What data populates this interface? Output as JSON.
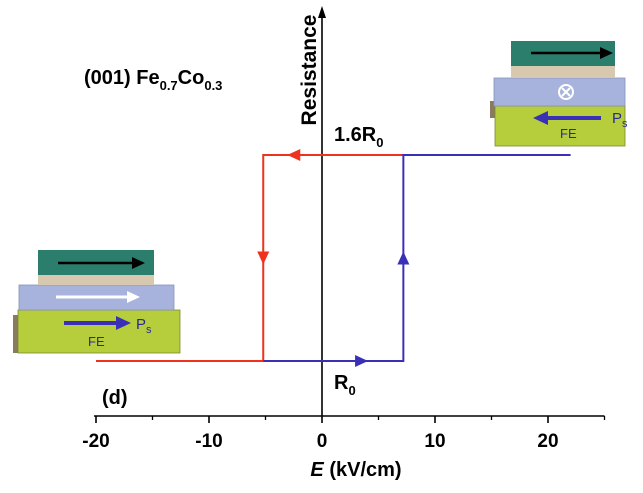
{
  "chart_data": {
    "type": "line",
    "title": "",
    "sample_label": {
      "prefix": "(001) Fe",
      "sub1": "0.7",
      "mid": "Co",
      "sub2": "0.3"
    },
    "panel_label": "(d)",
    "xlabel_italic": "E",
    "xlabel_units": " (kV/cm)",
    "ylabel": "Resistance",
    "xlim": [
      -20,
      25
    ],
    "ylim": [
      0.9,
      1.8
    ],
    "xticks": [
      -20,
      -10,
      0,
      10,
      20
    ],
    "xticklabels": [
      "-20",
      "-10",
      "0",
      "10",
      "20"
    ],
    "y_levels": {
      "low": 1.0,
      "high": 1.6
    },
    "level_labels": {
      "high_main": "1.6R",
      "high_sub": "0",
      "low_main": "R",
      "low_sub": "0"
    },
    "series": [
      {
        "color": "#f0311e",
        "x": [
          -20,
          -5.2,
          -5.2,
          7.2
        ],
        "y": [
          1.0,
          1.0,
          1.6,
          1.6
        ],
        "arrows": [
          {
            "x": -5.2,
            "y": 1.3,
            "dir": "down"
          },
          {
            "x": -2.5,
            "y": 1.6,
            "dir": "left"
          }
        ]
      },
      {
        "color": "#3a30b8",
        "x": [
          -5.2,
          7.2,
          7.2,
          22
        ],
        "y": [
          1.0,
          1.0,
          1.6,
          1.6
        ],
        "arrows": [
          {
            "x": 3.5,
            "y": 1.0,
            "dir": "right"
          },
          {
            "x": 7.2,
            "y": 1.3,
            "dir": "up"
          }
        ]
      }
    ],
    "insets": [
      {
        "position": "top-right",
        "top_arrow": "right",
        "middle": "into-page",
        "ps_arrow": "left",
        "ps_label": "P",
        "ps_sub": "s",
        "fe_label": "FE"
      },
      {
        "position": "left",
        "top_arrow": "right",
        "middle": "right",
        "ps_arrow": "right",
        "ps_label": "P",
        "ps_sub": "s",
        "fe_label": "FE"
      }
    ],
    "colors": {
      "increasing": "#3a30b8",
      "decreasing": "#f0311e",
      "top_layer": "#2b7e6c",
      "spacer": "#d9c8b0",
      "middle_layer": "#a7b3dc",
      "ferroelectric": "#b7ce3c",
      "substrate_edge": "#8a7a5e"
    }
  }
}
